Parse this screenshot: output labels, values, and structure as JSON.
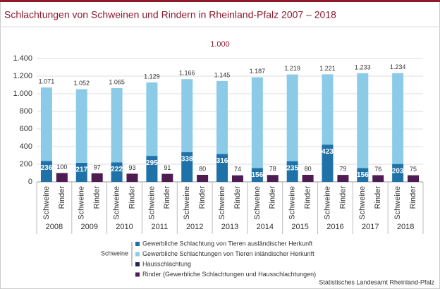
{
  "chart_data": {
    "type": "grouped-stacked-bar",
    "title": "Schlachtungen von Schweinen und Rindern in Rheinland-Pfalz 2007 – 2018",
    "unit_label": "1.000",
    "source": "Statistisches Landesamt Rheinland-Pfalz",
    "categories": [
      "2008",
      "2009",
      "2010",
      "2011",
      "2012",
      "2013",
      "2014",
      "2015",
      "2016",
      "2017",
      "2018"
    ],
    "subcategories": [
      "Schweine",
      "Rinder"
    ],
    "legend_group": "Schweine",
    "series": [
      {
        "name": "Gewerbliche Schlachtung von Tieren ausländischer Herkunft",
        "color": "#1f72a8",
        "bar": 0,
        "values": [
          236,
          217,
          222,
          295,
          338,
          316,
          156,
          235,
          423,
          156,
          203
        ]
      },
      {
        "name": "Gewerbliche Schlachtungen von Tieren inländischer Herkunft",
        "color": "#8ccbe8",
        "bar": 0,
        "values": [
          835,
          835,
          843,
          834,
          828,
          829,
          1031,
          984,
          798,
          1077,
          1031
        ]
      },
      {
        "name": "Hausschlachtung",
        "color": "#1c2b4d",
        "bar": 0,
        "values": [
          0,
          0,
          0,
          0,
          0,
          0,
          0,
          0,
          0,
          0,
          0
        ]
      },
      {
        "name": "Rinder (Gewerbliche Schlachtungen und Hausschlachtungen)",
        "color": "#4e1c52",
        "bar": 1,
        "values": [
          100,
          97,
          93,
          91,
          80,
          74,
          78,
          80,
          79,
          76,
          75
        ]
      }
    ],
    "totals": {
      "values": [
        1071,
        1052,
        1065,
        1129,
        1166,
        1145,
        1187,
        1219,
        1221,
        1233,
        1234
      ],
      "value_labels": [
        "1.071",
        "1.052",
        "1.065",
        "1.129",
        "1.166",
        "1.145",
        "1.187",
        "1.219",
        "1.221",
        "1.233",
        "1.234"
      ]
    },
    "ylim": [
      0,
      1400
    ],
    "yticks": [
      0,
      200,
      400,
      600,
      800,
      {
        "value": 1000,
        "label": "1.000"
      },
      {
        "value": 1200,
        "label": "1.200"
      },
      {
        "value": 1400,
        "label": "1.400"
      }
    ],
    "grid": true
  }
}
